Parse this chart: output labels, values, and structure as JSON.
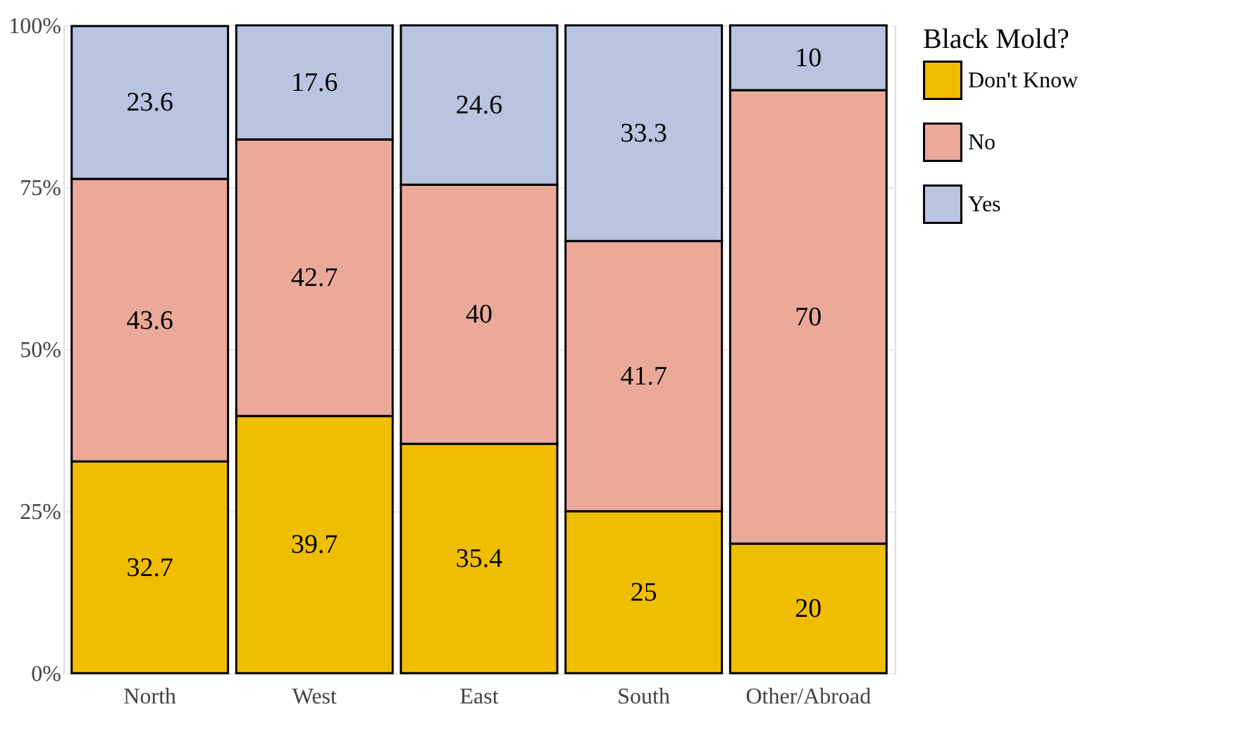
{
  "chart_data": {
    "type": "bar",
    "stacked": true,
    "categories": [
      "North",
      "West",
      "East",
      "South",
      "Other/Abroad"
    ],
    "series": [
      {
        "name": "Don't Know",
        "color": "#f0be00",
        "values": [
          32.7,
          39.7,
          35.4,
          25,
          20
        ]
      },
      {
        "name": "No",
        "color": "#eba99a",
        "values": [
          43.6,
          42.7,
          40,
          41.7,
          70
        ]
      },
      {
        "name": "Yes",
        "color": "#b8c4e0",
        "values": [
          23.6,
          17.6,
          24.6,
          33.3,
          10
        ]
      }
    ],
    "legend_title": "Black Mold?",
    "legend": "right",
    "data_labels": true,
    "grid": true,
    "ylim": [
      0,
      100
    ],
    "yticks": [
      {
        "value": 0,
        "label": "0%"
      },
      {
        "value": 25,
        "label": "25%"
      },
      {
        "value": 50,
        "label": "50%"
      },
      {
        "value": 75,
        "label": "75%"
      },
      {
        "value": 100,
        "label": "100%"
      }
    ]
  }
}
